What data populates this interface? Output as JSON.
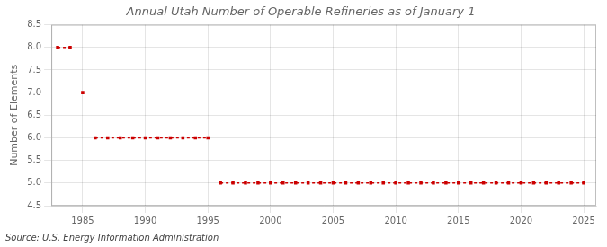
{
  "chart_data": {
    "type": "line",
    "title": "Annual Utah Number of Operable Refineries as of January 1",
    "ylabel": "Number of Elements",
    "annotation": "Source: U.S. Energy Information Administration",
    "x": [
      1983,
      1984,
      1985,
      1986,
      1987,
      1988,
      1989,
      1990,
      1991,
      1992,
      1993,
      1994,
      1995,
      1996,
      1997,
      1998,
      1999,
      2000,
      2001,
      2002,
      2003,
      2004,
      2005,
      2006,
      2007,
      2008,
      2009,
      2010,
      2011,
      2012,
      2013,
      2014,
      2015,
      2016,
      2017,
      2018,
      2019,
      2020,
      2021,
      2022,
      2023,
      2024,
      2025
    ],
    "values": [
      8,
      8,
      7,
      6,
      6,
      6,
      6,
      6,
      6,
      6,
      6,
      6,
      6,
      5,
      5,
      5,
      5,
      5,
      5,
      5,
      5,
      5,
      5,
      5,
      5,
      5,
      5,
      5,
      5,
      5,
      5,
      5,
      5,
      5,
      5,
      5,
      5,
      5,
      5,
      5,
      5,
      5,
      5
    ],
    "color": "#cc0000",
    "line_style": "dashed",
    "marker": "square",
    "xlim": [
      1982.5,
      2026
    ],
    "xticks": [
      1985,
      1990,
      1995,
      2000,
      2005,
      2010,
      2015,
      2020,
      2025
    ],
    "ylim": [
      4.5,
      8.5
    ],
    "yticks": [
      4.5,
      {
        "value": 5.0,
        "label": "5.0"
      },
      5.5,
      {
        "value": 6.0,
        "label": "6.0"
      },
      6.5,
      {
        "value": 7.0,
        "label": "7.0"
      },
      7.5,
      {
        "value": 8.0,
        "label": "8.0"
      },
      8.5
    ],
    "grid": true
  }
}
